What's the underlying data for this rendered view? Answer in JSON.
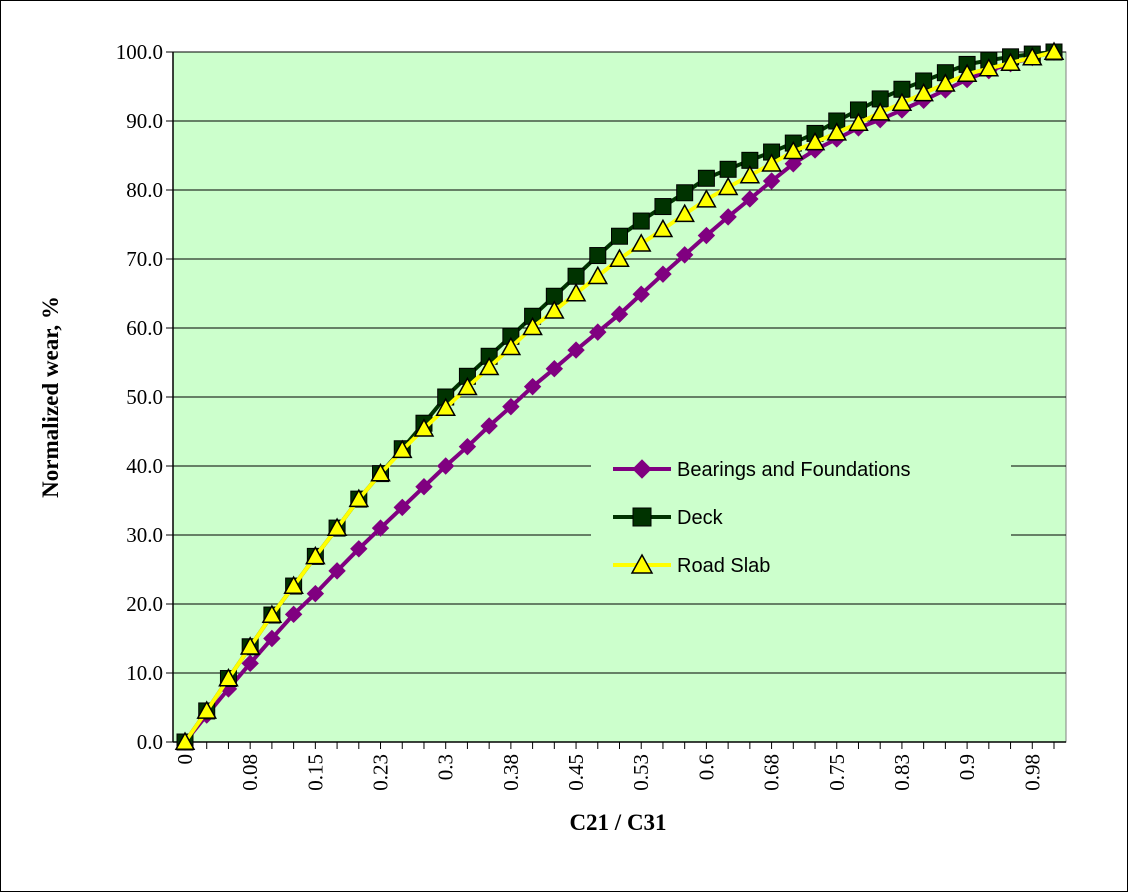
{
  "chart_data": {
    "type": "line",
    "title": "",
    "xlabel": "C21 / C31",
    "ylabel": "Normalized wear, %",
    "ylim": [
      0,
      100
    ],
    "ytick_labels": [
      "0.0",
      "10.0",
      "20.0",
      "30.0",
      "40.0",
      "50.0",
      "60.0",
      "70.0",
      "80.0",
      "90.0",
      "100.0"
    ],
    "x": [
      0,
      0.025,
      0.05,
      0.075,
      0.1,
      0.125,
      0.15,
      0.175,
      0.2,
      0.225,
      0.25,
      0.275,
      0.3,
      0.325,
      0.35,
      0.375,
      0.4,
      0.425,
      0.45,
      0.475,
      0.5,
      0.525,
      0.55,
      0.575,
      0.6,
      0.625,
      0.65,
      0.675,
      0.7,
      0.725,
      0.75,
      0.775,
      0.8,
      0.825,
      0.85,
      0.875,
      0.9,
      0.925,
      0.95,
      0.975,
      1.0
    ],
    "xtick_labels": [
      "0",
      "0.08",
      "0.15",
      "0.23",
      "0.3",
      "0.38",
      "0.45",
      "0.53",
      "0.6",
      "0.68",
      "0.75",
      "0.83",
      "0.9",
      "0.98"
    ],
    "xtick_indices": [
      0,
      3,
      6,
      9,
      12,
      15,
      18,
      21,
      24,
      27,
      30,
      33,
      36,
      39
    ],
    "grid": "horizontal",
    "legend_position": "right-middle",
    "plot_background": "#ccffcc",
    "series": [
      {
        "name": "Bearings and Foundations",
        "color": "#800080",
        "marker": "diamond",
        "marker_fill": "#800080",
        "values": [
          0.0,
          3.9,
          7.7,
          11.4,
          15.0,
          18.5,
          21.5,
          24.8,
          28.0,
          31.0,
          34.0,
          37.0,
          40.0,
          42.8,
          45.8,
          48.6,
          51.5,
          54.1,
          56.8,
          59.4,
          62.0,
          64.9,
          67.8,
          70.6,
          73.4,
          76.1,
          78.7,
          81.3,
          83.8,
          85.8,
          87.4,
          89.0,
          90.2,
          91.6,
          93.0,
          94.5,
          96.0,
          97.3,
          98.3,
          99.2,
          100.0
        ]
      },
      {
        "name": "Deck",
        "color": "#003300",
        "marker": "square",
        "marker_fill": "#003300",
        "values": [
          0.0,
          4.5,
          9.2,
          13.8,
          18.4,
          22.6,
          26.9,
          31.0,
          35.2,
          38.9,
          42.5,
          46.2,
          50.0,
          53.0,
          55.9,
          58.8,
          61.7,
          64.6,
          67.5,
          70.5,
          73.3,
          75.5,
          77.6,
          79.6,
          81.7,
          83.0,
          84.3,
          85.5,
          86.8,
          88.2,
          90.0,
          91.6,
          93.2,
          94.6,
          95.8,
          97.0,
          98.2,
          98.8,
          99.3,
          99.7,
          100.0
        ]
      },
      {
        "name": "Road Slab",
        "color": "#ffff00",
        "marker": "triangle",
        "marker_fill": "#ffff00",
        "values": [
          0.0,
          4.5,
          9.2,
          13.8,
          18.4,
          22.6,
          26.9,
          31.0,
          35.2,
          38.9,
          42.3,
          45.4,
          48.4,
          51.4,
          54.3,
          57.2,
          60.1,
          62.5,
          65.0,
          67.5,
          70.0,
          72.2,
          74.3,
          76.5,
          78.6,
          80.4,
          82.1,
          83.8,
          85.6,
          86.9,
          88.3,
          89.7,
          91.2,
          92.6,
          94.0,
          95.4,
          96.8,
          97.6,
          98.4,
          99.2,
          100.0
        ]
      }
    ]
  }
}
